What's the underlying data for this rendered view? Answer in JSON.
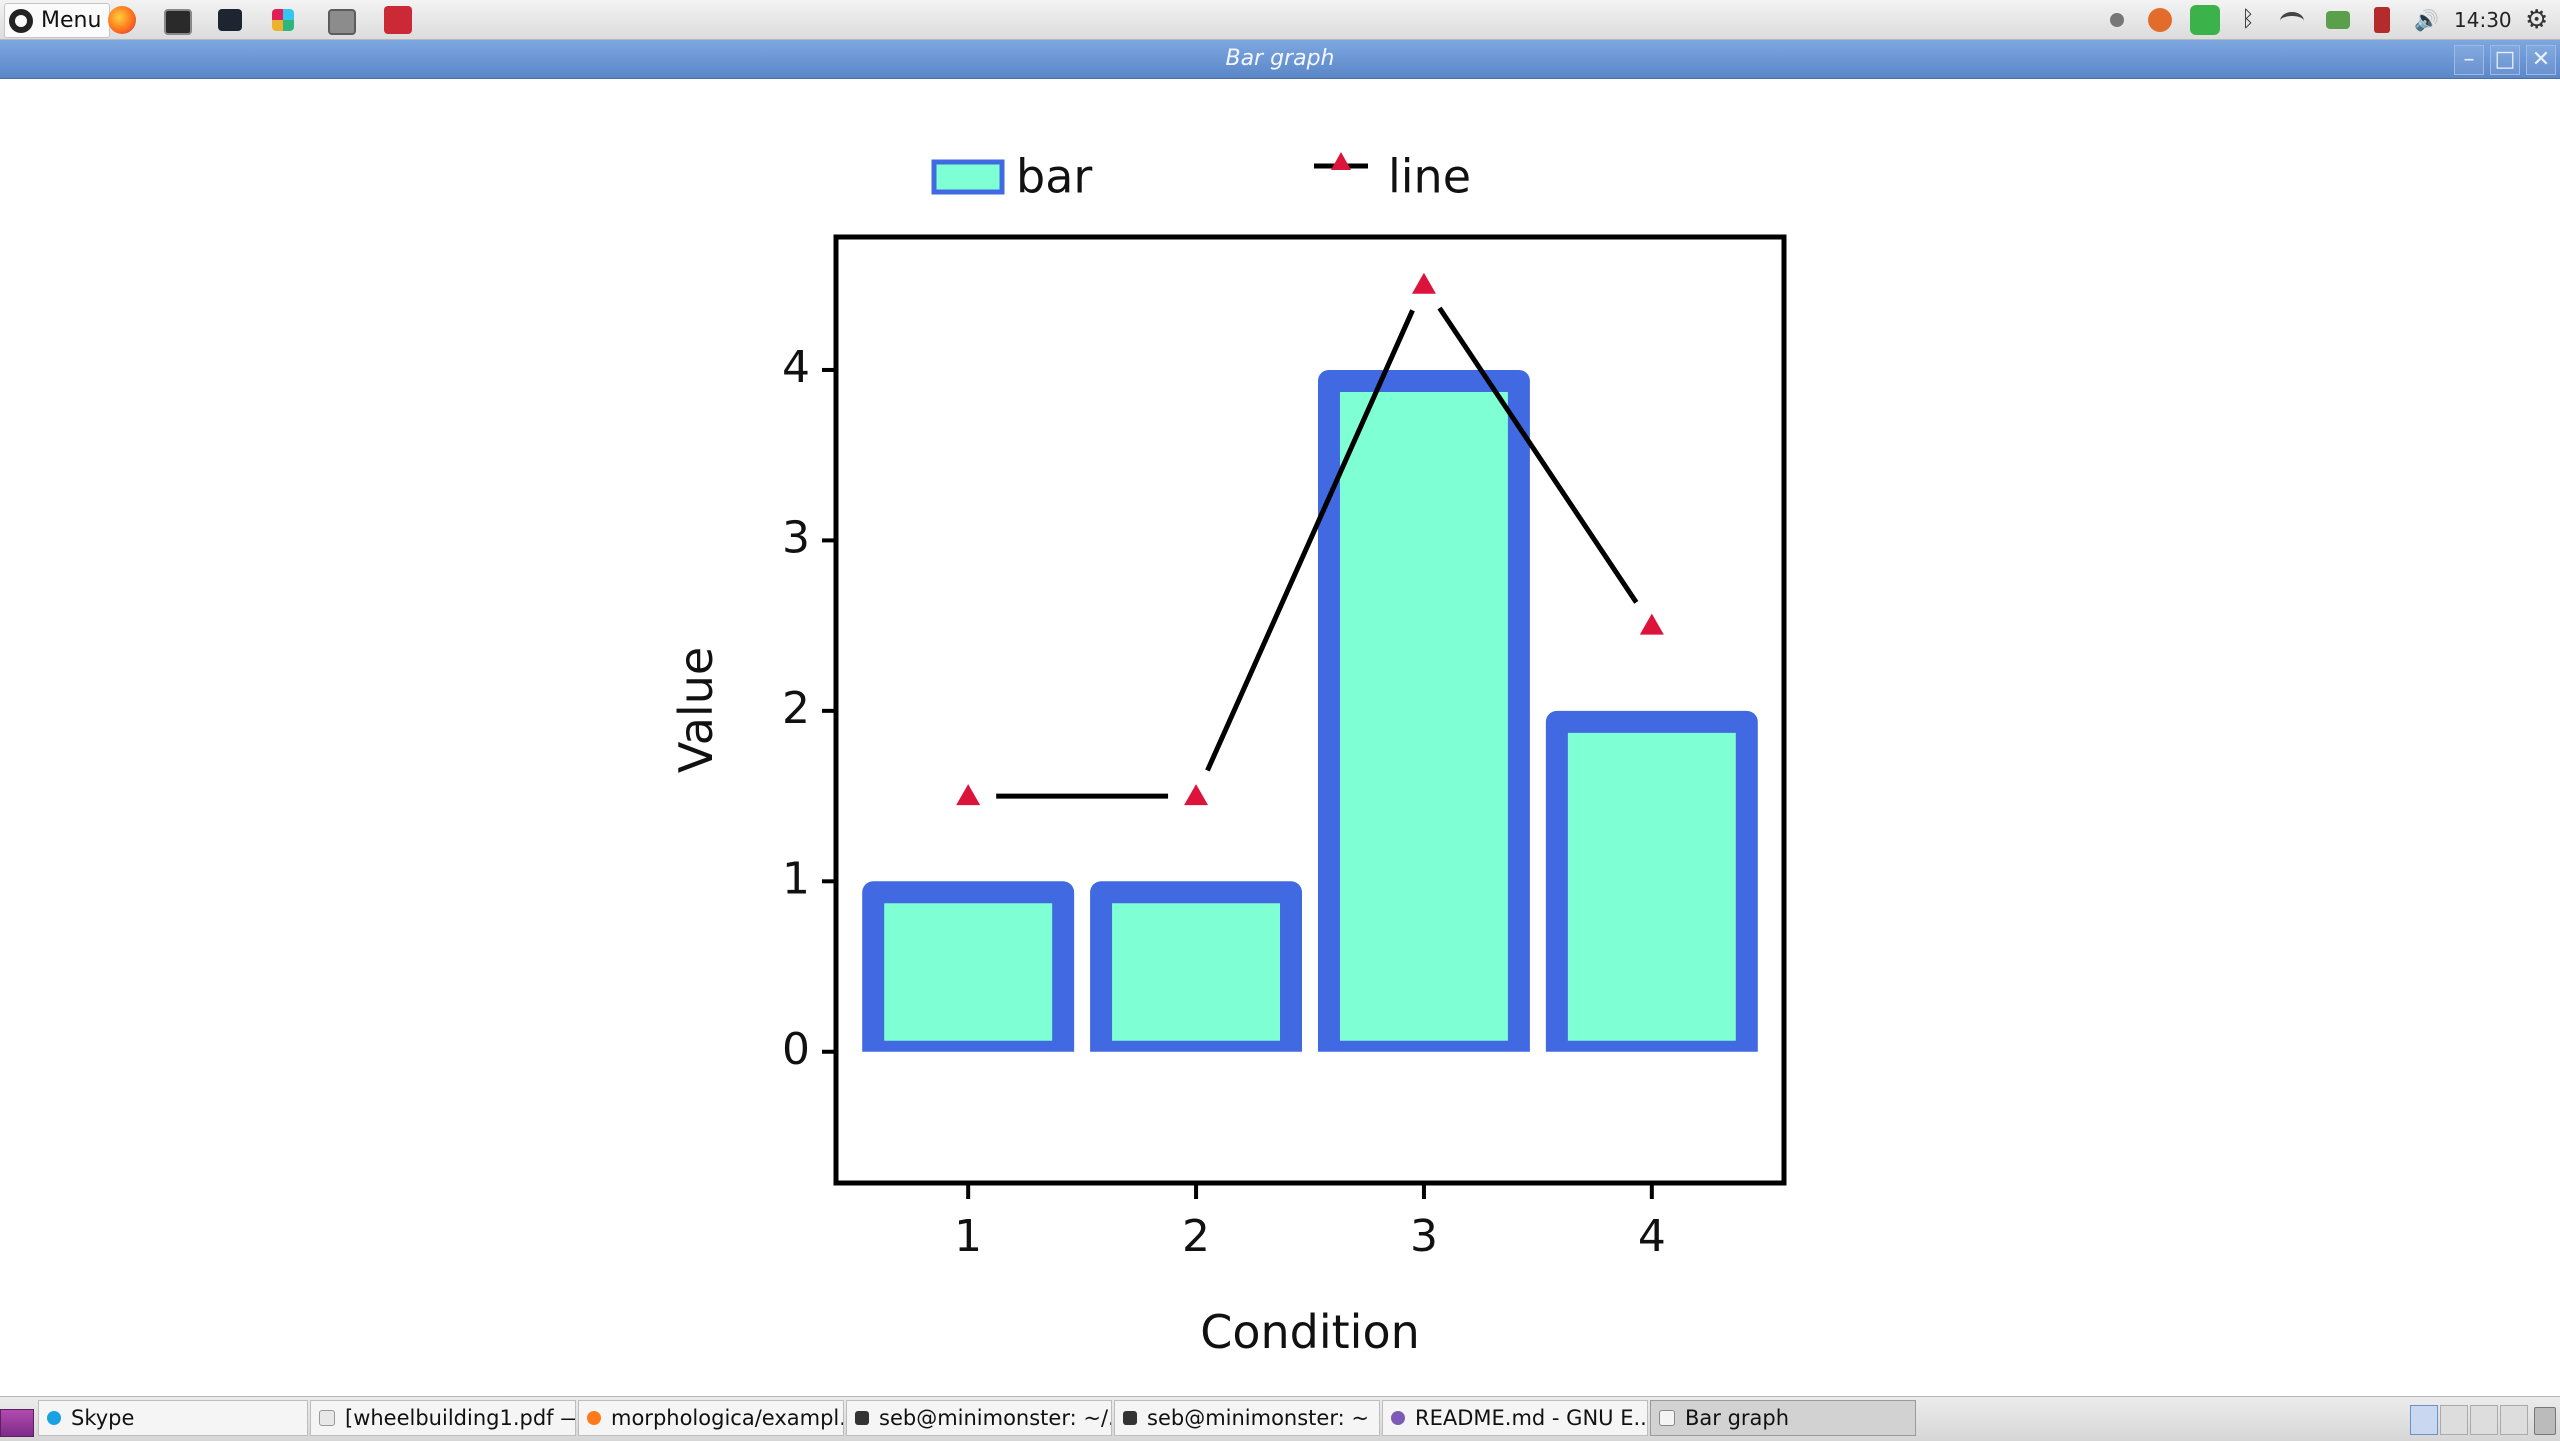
{
  "top_panel": {
    "menu_label": "Menu",
    "clock": "14:30"
  },
  "window": {
    "title": "Bar graph"
  },
  "chart_data": {
    "type": "bar",
    "categories": [
      "1",
      "2",
      "3",
      "4"
    ],
    "x": [
      1,
      2,
      3,
      4
    ],
    "series": [
      {
        "name": "bar",
        "type": "bar",
        "values": [
          1,
          1,
          4,
          2
        ],
        "color": "#7fffd4",
        "edge_color": "#4169e1"
      },
      {
        "name": "line",
        "type": "line",
        "values": [
          1.5,
          1.5,
          4.5,
          2.5
        ],
        "color": "#000000",
        "marker": "triangle",
        "marker_color": "#dc143c"
      }
    ],
    "yticks": [
      "0",
      "1",
      "2",
      "3",
      "4"
    ],
    "xlabel": "Condition",
    "ylabel": "Value",
    "ylim": [
      -0.77,
      4.78
    ],
    "xlim": [
      0.42,
      4.58
    ],
    "legend": "top",
    "grid": false
  },
  "taskbar": {
    "tasks": [
      "Skype",
      "[wheelbuilding1.pdf —...",
      "morphologica/exampl...",
      "seb@minimonster: ~/...",
      "seb@minimonster: ~",
      "README.md - GNU E...",
      "Bar graph"
    ]
  },
  "colors": {
    "titlebar": "#6a96d6",
    "bar_fill": "#7fffd4",
    "bar_edge": "#4169e1",
    "marker": "#dc143c"
  }
}
